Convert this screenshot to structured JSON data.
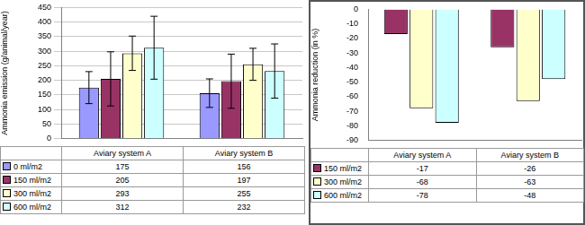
{
  "chart_data": [
    {
      "type": "bar",
      "y_label": "Ammonia emission (g/animal/year)",
      "categories": [
        "Aviary system A",
        "Aviary system B"
      ],
      "series": [
        {
          "name": "0 ml/m2",
          "color": "#9999ff",
          "values": [
            175,
            156
          ],
          "errors": [
            55,
            49
          ]
        },
        {
          "name": "150 ml/m2",
          "color": "#993366",
          "values": [
            205,
            197
          ],
          "errors": [
            93,
            93
          ]
        },
        {
          "name": "300 ml/m2",
          "color": "#ffffcc",
          "values": [
            293,
            255
          ],
          "errors": [
            59,
            55
          ]
        },
        {
          "name": "600 ml/m2",
          "color": "#ccffff",
          "values": [
            312,
            232
          ],
          "errors": [
            108,
            93
          ]
        }
      ],
      "ylim": [
        0,
        450
      ],
      "yticks": [
        0,
        50,
        100,
        150,
        200,
        250,
        300,
        350,
        400,
        450
      ],
      "grid": true,
      "tick_labels": "y"
    },
    {
      "type": "bar",
      "y_label": "Ammonia reduction (in %)",
      "categories": [
        "Aviary system A",
        "Aviary system B"
      ],
      "series": [
        {
          "name": "150 ml/m2",
          "color": "#993366",
          "values": [
            -17,
            -26
          ]
        },
        {
          "name": "300 ml/m2",
          "color": "#ffffcc",
          "values": [
            -68,
            -63
          ]
        },
        {
          "name": "600 ml/m2",
          "color": "#ccffff",
          "values": [
            -78,
            -48
          ]
        }
      ],
      "ylim": [
        -90,
        0
      ],
      "yticks": [
        -90,
        -80,
        -70,
        -60,
        -50,
        -40,
        -30,
        -20,
        -10,
        0
      ],
      "grid": false,
      "tick_labels": "y"
    }
  ]
}
